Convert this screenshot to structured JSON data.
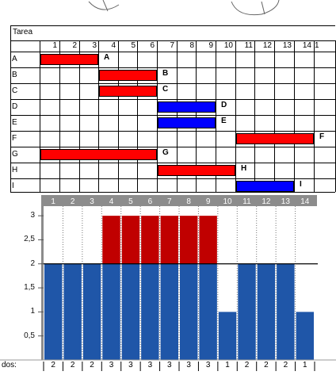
{
  "gantt": {
    "header_label": "Tarea",
    "periods": [
      "1",
      "2",
      "3",
      "4",
      "5",
      "6",
      "7",
      "8",
      "9",
      "10",
      "11",
      "12",
      "13",
      "14",
      "1"
    ],
    "tasks": [
      {
        "name": "A",
        "start": 1,
        "end": 3,
        "color": "#ff0000"
      },
      {
        "name": "B",
        "start": 4,
        "end": 6,
        "color": "#ff0000"
      },
      {
        "name": "C",
        "start": 4,
        "end": 6,
        "color": "#ff0000"
      },
      {
        "name": "D",
        "start": 7,
        "end": 9,
        "color": "#0000ff"
      },
      {
        "name": "E",
        "start": 7,
        "end": 9,
        "color": "#0000ff"
      },
      {
        "name": "F",
        "start": 11,
        "end": 14,
        "color": "#ff0000"
      },
      {
        "name": "G",
        "start": 1,
        "end": 6,
        "color": "#ff0000"
      },
      {
        "name": "H",
        "start": 7,
        "end": 10,
        "color": "#ff0000"
      },
      {
        "name": "I",
        "start": 11,
        "end": 13,
        "color": "#0000ff"
      }
    ]
  },
  "chart_data": {
    "type": "bar",
    "categories": [
      "1",
      "2",
      "3",
      "4",
      "5",
      "6",
      "7",
      "8",
      "9",
      "10",
      "11",
      "12",
      "13",
      "14"
    ],
    "series": [
      {
        "values": [
          2,
          2,
          2,
          2,
          2,
          2,
          2,
          2,
          2,
          1,
          2,
          2,
          2,
          1
        ],
        "color": "#1f56a8"
      },
      {
        "values": [
          0,
          0,
          0,
          1,
          1,
          1,
          1,
          1,
          1,
          0,
          0,
          0,
          0,
          0
        ],
        "color": "#c00000"
      }
    ],
    "yticks": [
      "0,5",
      "1",
      "1,5",
      "2",
      "2,5",
      "3"
    ],
    "ylim": [
      0,
      3.2
    ],
    "reference_line": 2,
    "totals_label": "dos:",
    "totals": [
      "2",
      "2",
      "2",
      "3",
      "3",
      "3",
      "3",
      "3",
      "3",
      "1",
      "2",
      "2",
      "2",
      "1"
    ]
  }
}
